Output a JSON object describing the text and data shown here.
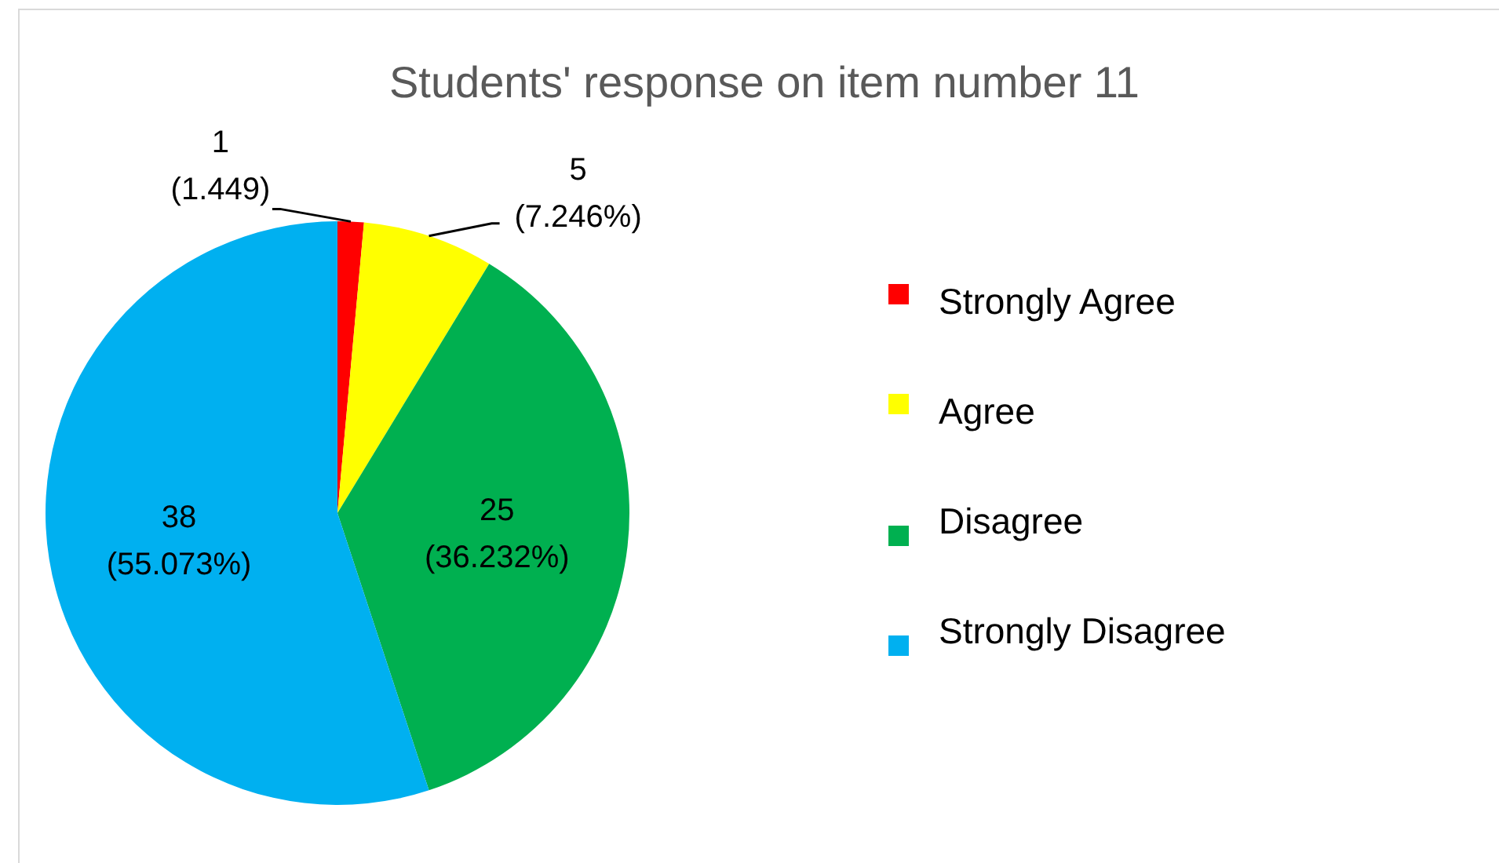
{
  "chart_data": {
    "type": "pie",
    "title": "Students' response on item number 11",
    "categories": [
      "Strongly Agree",
      "Agree",
      "Disagree",
      "Strongly Disagree"
    ],
    "values": [
      1,
      5,
      25,
      38
    ],
    "colors": [
      "#ff0000",
      "#ffff00",
      "#00b050",
      "#00b0f0"
    ],
    "value_labels": [
      "1\n(1.449)",
      "5\n(7.246%)",
      "25\n(36.232%)",
      "38\n(55.073%)"
    ],
    "legend": "right"
  }
}
